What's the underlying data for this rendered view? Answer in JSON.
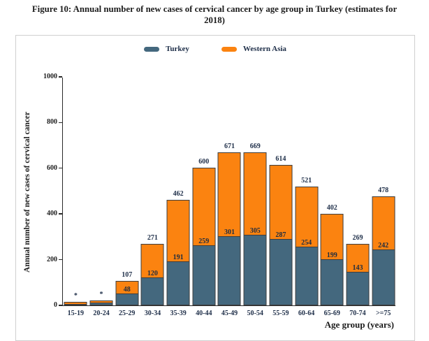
{
  "figure": {
    "title": "Figure 10: Annual number of new cases of cervical cancer by age group in Turkey (estimates for 2018)",
    "title_lines": [
      "Figure 10: Annual number of new cases of cervical cancer by age group in Turkey (estimates for",
      "2018)"
    ]
  },
  "legend": {
    "items": [
      {
        "label": "Turkey",
        "color": "#44687E"
      },
      {
        "label": "Western Asia",
        "color": "#FB8310"
      }
    ]
  },
  "chart_data": {
    "type": "bar",
    "stacked": true,
    "title": "Annual number of new cases of cervical cancer by age group in Turkey (estimates for 2018)",
    "xlabel": "Age group (years)",
    "ylabel": "Annual number of new cases of cervical cancer",
    "ylim": [
      0,
      1000
    ],
    "yticks": [
      0,
      200,
      400,
      600,
      800,
      1000
    ],
    "grid": false,
    "legend_position": "top-center",
    "categories": [
      "15-19",
      "20-24",
      "25-29",
      "30-34",
      "35-39",
      "40-44",
      "45-49",
      "50-54",
      "55-59",
      "60-64",
      "65-69",
      "70-74",
      ">=75"
    ],
    "series": [
      {
        "name": "Turkey",
        "color": "#44687E",
        "values": [
          3,
          9,
          48,
          120,
          191,
          259,
          301,
          305,
          287,
          254,
          199,
          143,
          242
        ]
      },
      {
        "name": "Western Asia",
        "color": "#FB8310",
        "values": [
          13,
          11,
          59,
          151,
          271,
          341,
          370,
          364,
          327,
          267,
          203,
          126,
          236
        ]
      }
    ],
    "total_labels": [
      "*",
      "*",
      "107",
      "271",
      "462",
      "600",
      "671",
      "669",
      "614",
      "521",
      "402",
      "269",
      "478"
    ],
    "turkey_segment_labels": [
      "",
      "",
      "48",
      "120",
      "191",
      "259",
      "301",
      "305",
      "287",
      "254",
      "199",
      "143",
      "242"
    ]
  },
  "colors": {
    "turkey": "#44687E",
    "western_asia": "#FB8310",
    "bar_border": "#3E3E3E",
    "axis": "#2A2A2A",
    "chart_text": "#20304A",
    "panel_border": "#CFCFCF"
  }
}
